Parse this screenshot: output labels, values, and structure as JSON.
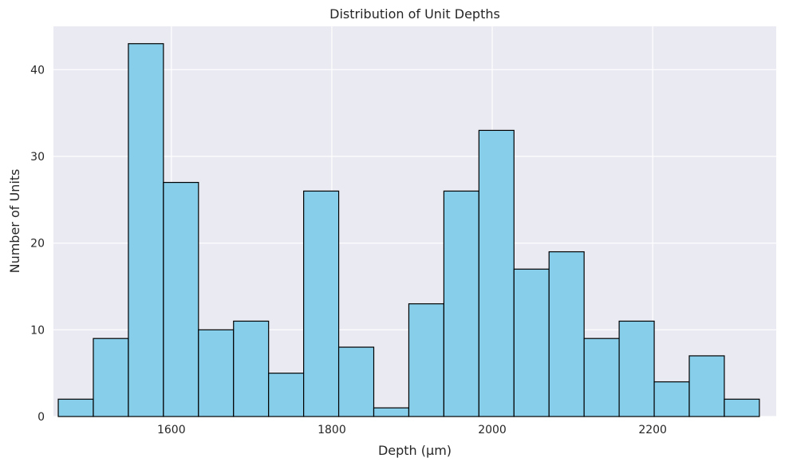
{
  "chart_data": {
    "type": "bar",
    "title": "Distribution of Unit Depths",
    "xlabel": "Depth (µm)",
    "ylabel": "Number of Units",
    "xlim": [
      1453,
      2354
    ],
    "ylim": [
      0,
      45
    ],
    "xticks": [
      1600,
      1800,
      2000,
      2200
    ],
    "yticks": [
      0,
      10,
      20,
      30,
      40
    ],
    "grid": true,
    "bin_edges": [
      1459,
      1502.7,
      1546.4,
      1590.1,
      1633.8,
      1677.5,
      1721.2,
      1764.9,
      1808.6,
      1852.3,
      1896,
      1939.7,
      1983.4,
      2027.1,
      2070.8,
      2114.5,
      2158.2,
      2201.9,
      2245.6,
      2289.3,
      2333
    ],
    "values": [
      2,
      9,
      43,
      27,
      10,
      11,
      5,
      26,
      8,
      1,
      13,
      26,
      33,
      17,
      19,
      9,
      11,
      4,
      7,
      2
    ],
    "colors": {
      "bar_fill": "#87ceeb",
      "bar_edge": "#000000",
      "plot_background": "#eaeaf2",
      "grid": "#ffffff"
    }
  }
}
